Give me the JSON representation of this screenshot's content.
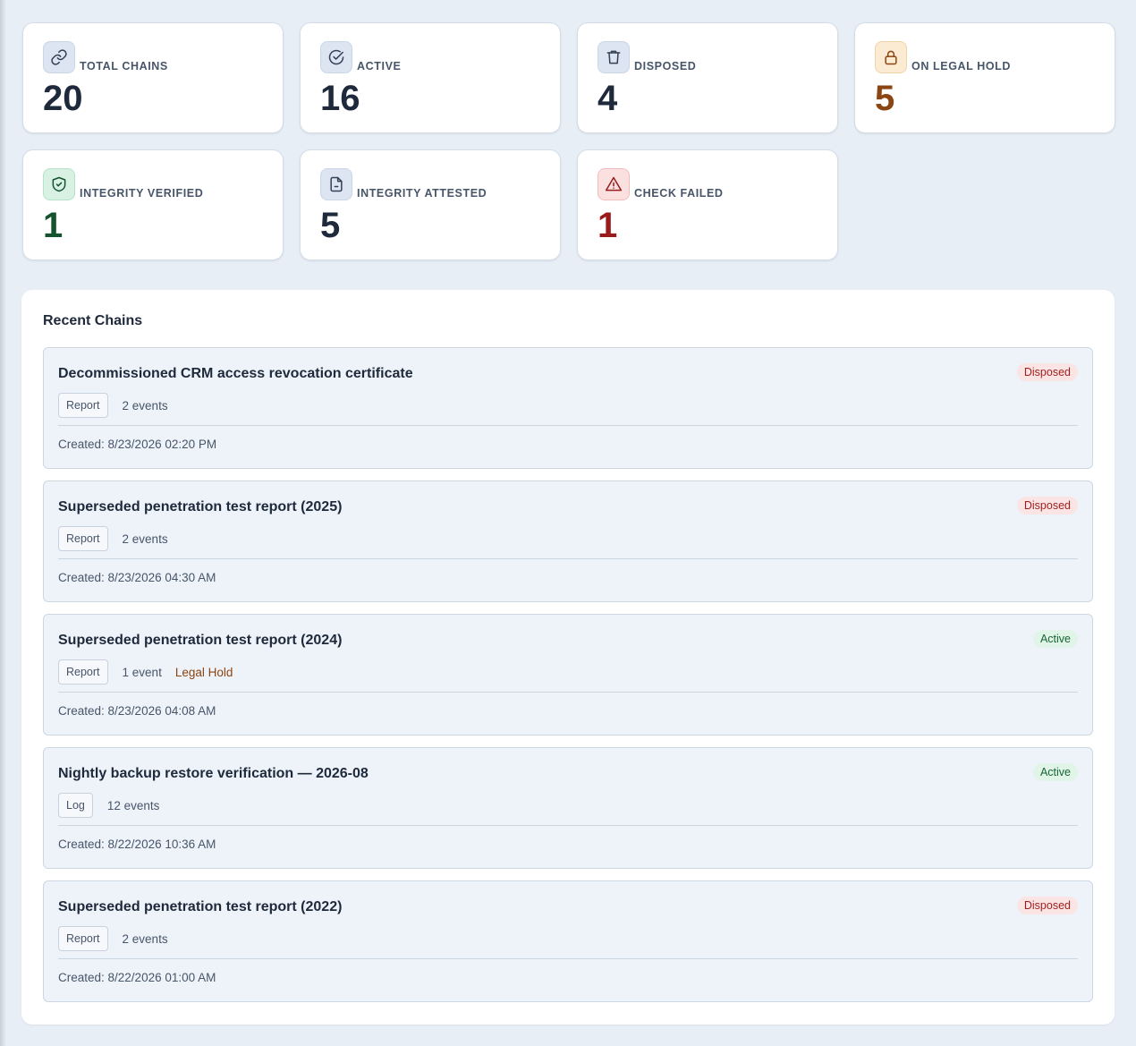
{
  "stats": [
    {
      "label": "TOTAL CHAINS",
      "value": "20",
      "icon": "link-icon",
      "tone": "slate"
    },
    {
      "label": "ACTIVE",
      "value": "16",
      "icon": "check-circle-icon",
      "tone": "slate"
    },
    {
      "label": "DISPOSED",
      "value": "4",
      "icon": "trash-icon",
      "tone": "slate"
    },
    {
      "label": "ON LEGAL HOLD",
      "value": "5",
      "icon": "lock-icon",
      "tone": "amber"
    },
    {
      "label": "INTEGRITY VERIFIED",
      "value": "1",
      "icon": "shield-check-icon",
      "tone": "green"
    },
    {
      "label": "INTEGRITY ATTESTED",
      "value": "5",
      "icon": "document-icon",
      "tone": "slate"
    },
    {
      "label": "CHECK FAILED",
      "value": "1",
      "icon": "warning-triangle-icon",
      "tone": "red"
    }
  ],
  "recent": {
    "title": "Recent Chains",
    "chains": [
      {
        "title": "Decommissioned CRM access revocation certificate",
        "type": "Report",
        "events": "2 events",
        "legal_hold": "",
        "status": "Disposed",
        "created": "Created: 8/23/2026 02:20 PM"
      },
      {
        "title": "Superseded penetration test report (2025)",
        "type": "Report",
        "events": "2 events",
        "legal_hold": "",
        "status": "Disposed",
        "created": "Created: 8/23/2026 04:30 AM"
      },
      {
        "title": "Superseded penetration test report (2024)",
        "type": "Report",
        "events": "1 event",
        "legal_hold": "Legal Hold",
        "status": "Active",
        "created": "Created: 8/23/2026 04:08 AM"
      },
      {
        "title": "Nightly backup restore verification — 2026-08",
        "type": "Log",
        "events": "12 events",
        "legal_hold": "",
        "status": "Active",
        "created": "Created: 8/22/2026 10:36 AM"
      },
      {
        "title": "Superseded penetration test report (2022)",
        "type": "Report",
        "events": "2 events",
        "legal_hold": "",
        "status": "Disposed",
        "created": "Created: 8/22/2026 01:00 AM"
      }
    ]
  },
  "colors": {
    "background": "#e8eef6",
    "text_primary": "#1e293b",
    "legal_hold": "#8a4513",
    "verified": "#14532d",
    "failed": "#991b1b",
    "disposed_badge": "#9f1d1d",
    "active_badge": "#166534"
  }
}
